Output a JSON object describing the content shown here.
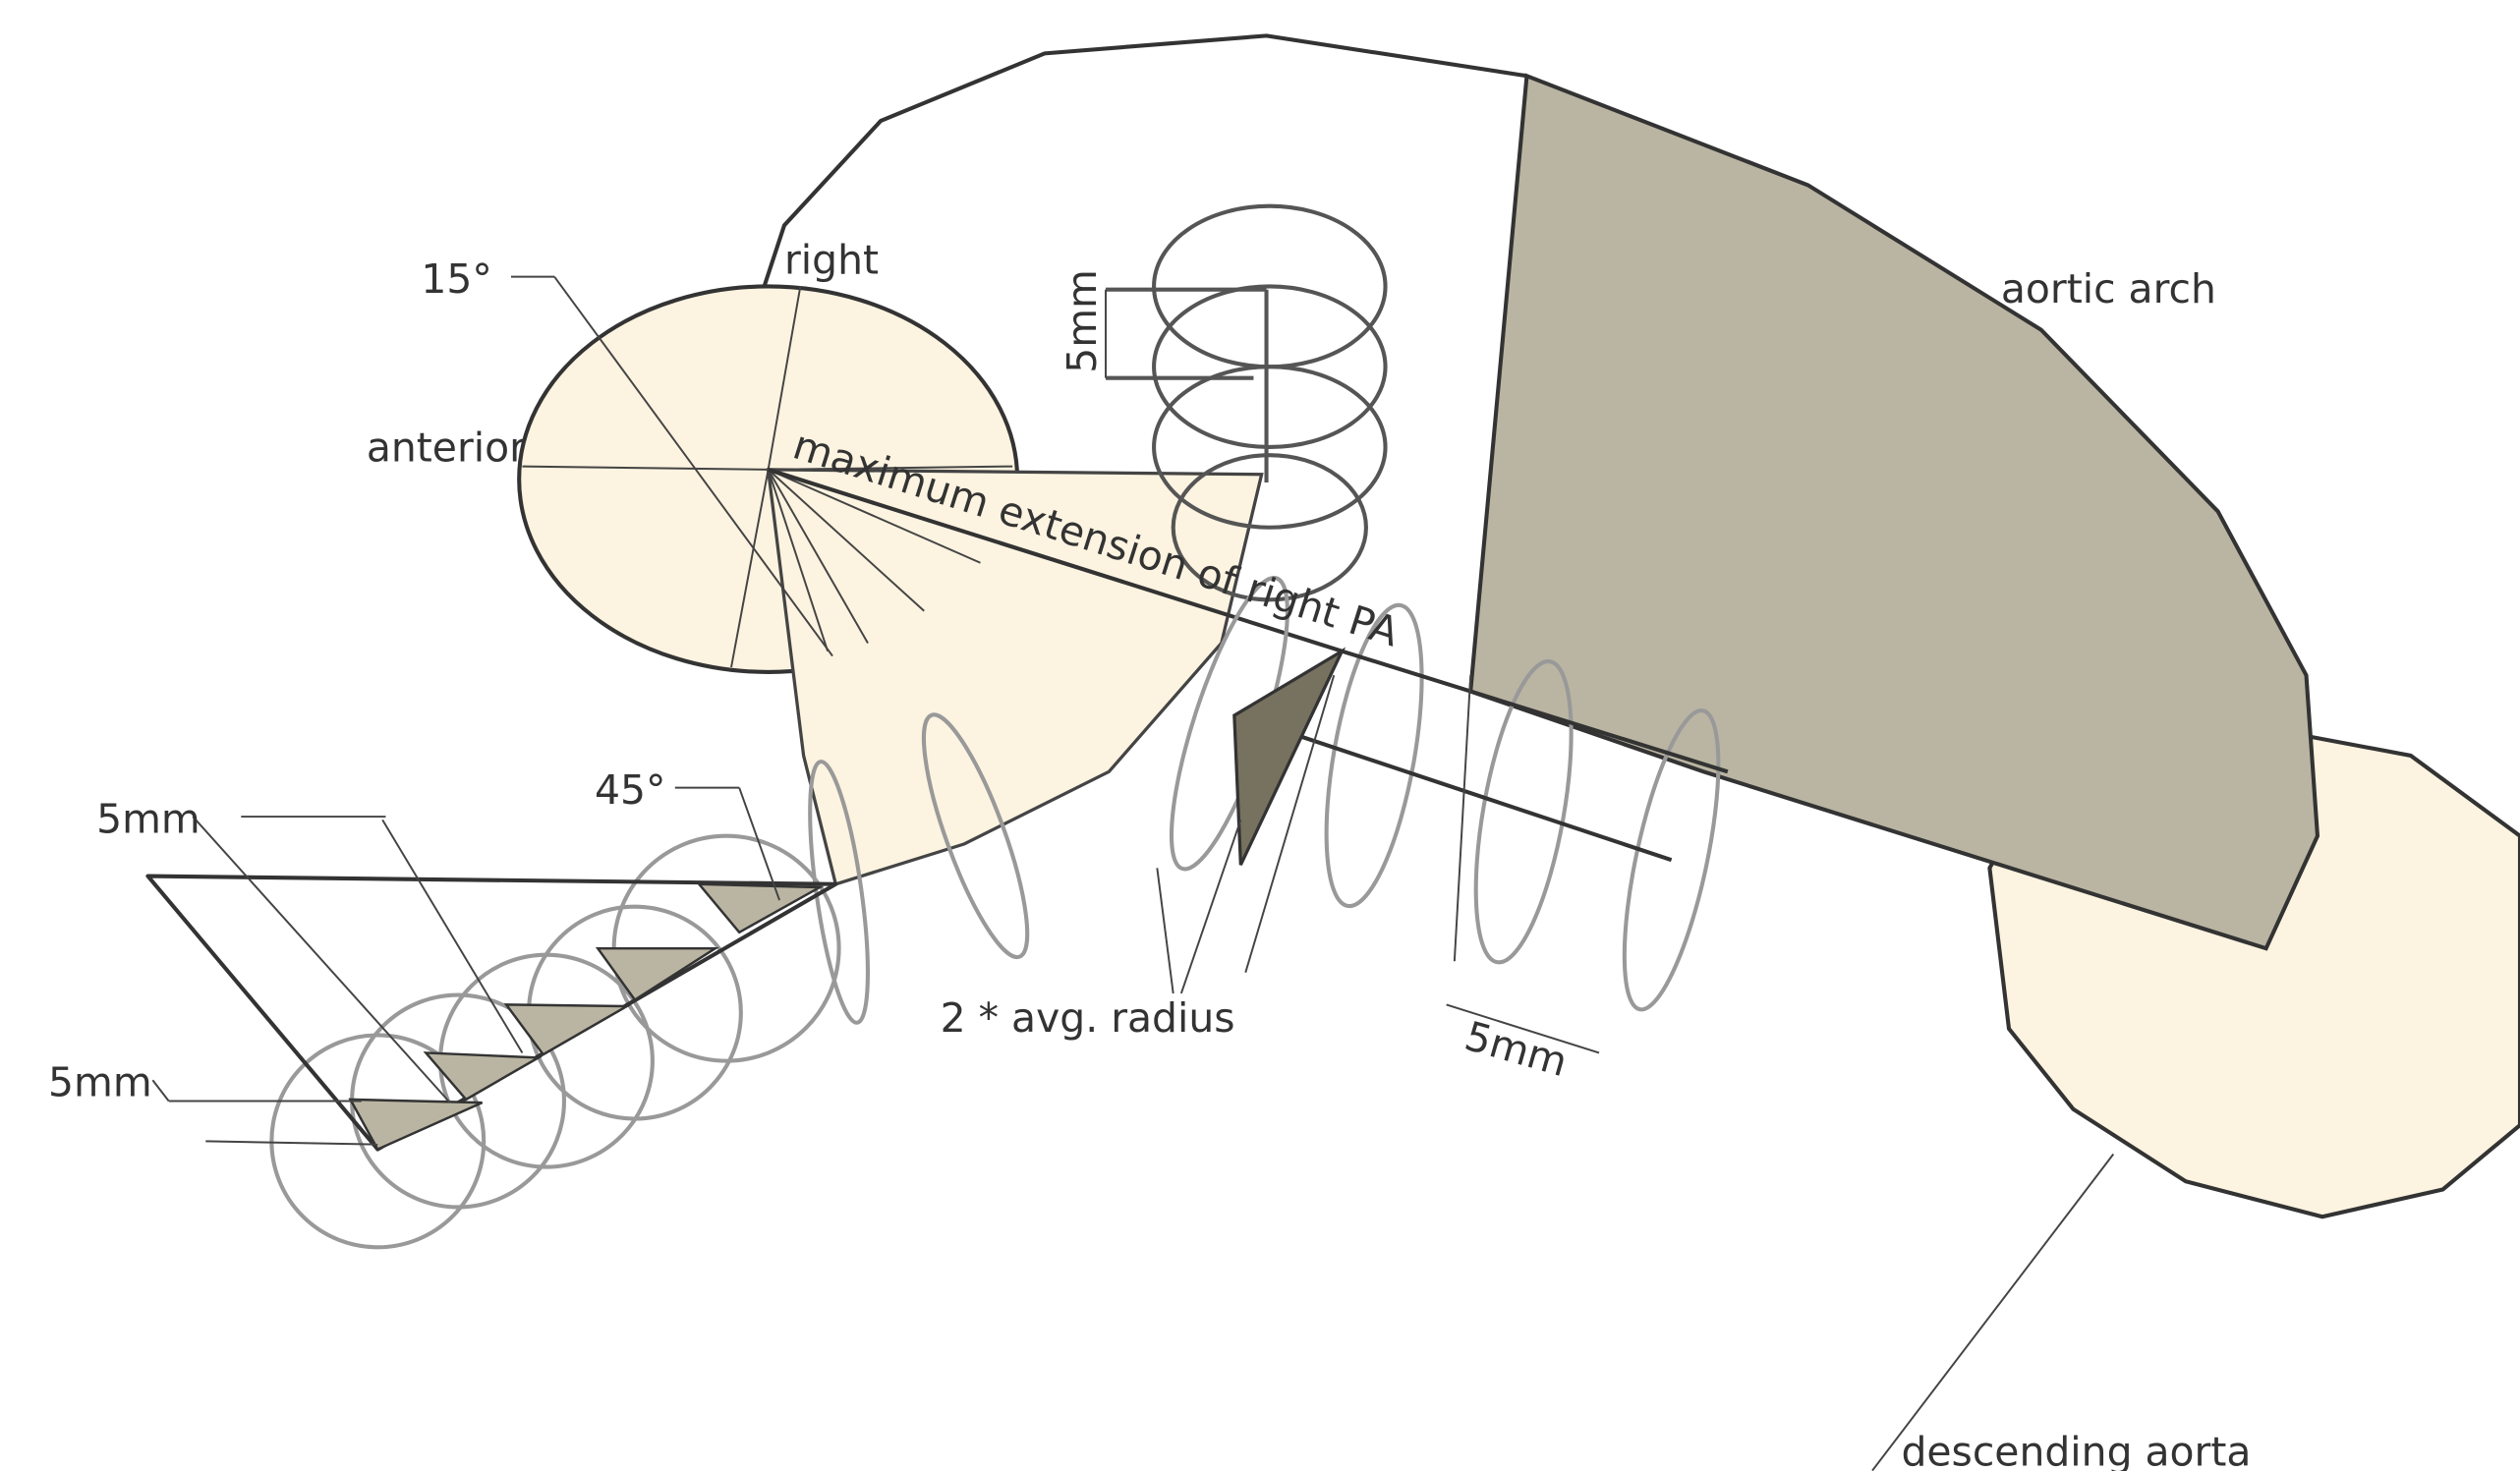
{
  "labels": {
    "angle_top": "15°",
    "right": "right",
    "anterior": "anterior",
    "max_extension": "maximum extension of right PA",
    "spacing_vertical": "5mm",
    "aortic_arch": "aortic arch",
    "angle_left": "45°",
    "spacing_left_top": "5mm",
    "spacing_left_bottom": "5mm",
    "avg_radius": "2 * avg. radius",
    "spacing_bottom": "5mm",
    "descending_aorta": "descending aorta"
  }
}
